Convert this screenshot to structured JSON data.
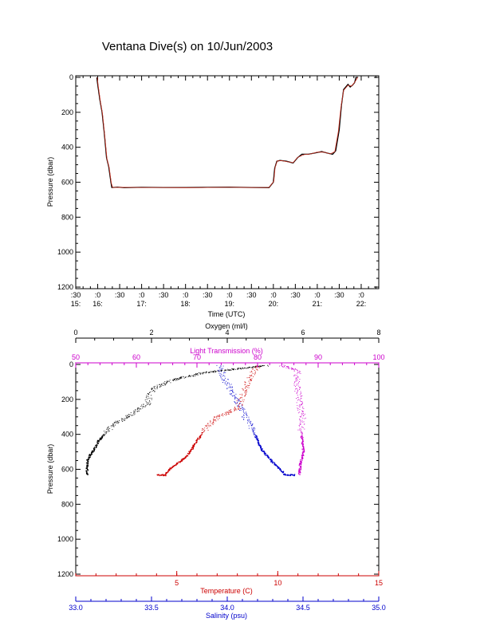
{
  "chart_data": [
    {
      "type": "line",
      "title": "Ventana Dive(s) on 10/Jun/2003",
      "xlabel": "Time (UTC)",
      "ylabel": "Pressure (dbar)",
      "x_tick_labels": [
        {
          "minute": ":30",
          "hour": "15:"
        },
        {
          "minute": ":0",
          "hour": "16:"
        },
        {
          "minute": ":30",
          "hour": ""
        },
        {
          "minute": ":0",
          "hour": "17:"
        },
        {
          "minute": ":30",
          "hour": ""
        },
        {
          "minute": ":0",
          "hour": "18:"
        },
        {
          "minute": ":30",
          "hour": ""
        },
        {
          "minute": ":0",
          "hour": "19:"
        },
        {
          "minute": ":30",
          "hour": ""
        },
        {
          "minute": ":0",
          "hour": "20:"
        },
        {
          "minute": ":30",
          "hour": ""
        },
        {
          "minute": ":0",
          "hour": "21:"
        },
        {
          "minute": ":30",
          "hour": ""
        },
        {
          "minute": ":0",
          "hour": "22:"
        }
      ],
      "xlim_hours": [
        15.5,
        22.4
      ],
      "ylim": [
        1200,
        0
      ],
      "y_ticks": [
        0,
        200,
        400,
        600,
        800,
        1000,
        1200
      ],
      "series": [
        {
          "color": "#000000",
          "x_hours": [
            15.98,
            16.0,
            16.05,
            16.1,
            16.15,
            16.2,
            16.25,
            16.3,
            16.32,
            16.35,
            16.45,
            16.6,
            17.0,
            17.5,
            18.0,
            18.5,
            19.0,
            19.5,
            19.9,
            20.0,
            20.03,
            20.08,
            20.15,
            20.3,
            20.45,
            20.55,
            20.65,
            20.8,
            21.0,
            21.1,
            21.25,
            21.35,
            21.42,
            21.5,
            21.55,
            21.6,
            21.7,
            21.75,
            21.8,
            21.85,
            21.88,
            21.93
          ],
          "y_dbar": [
            0,
            40,
            130,
            200,
            320,
            460,
            510,
            600,
            630,
            630,
            628,
            631,
            629,
            630,
            630,
            629,
            628,
            630,
            631,
            600,
            520,
            480,
            475,
            480,
            490,
            460,
            440,
            440,
            430,
            425,
            435,
            440,
            420,
            300,
            160,
            70,
            40,
            55,
            45,
            30,
            0,
            0
          ]
        },
        {
          "color": "#d03020",
          "x_hours": [
            15.99,
            16.01,
            16.06,
            16.11,
            16.16,
            16.21,
            16.26,
            16.31,
            16.34,
            16.5,
            17.0,
            17.5,
            18.0,
            18.5,
            19.0,
            19.5,
            19.9,
            20.01,
            20.04,
            20.09,
            20.2,
            20.3,
            20.45,
            20.55,
            20.7,
            20.85,
            21.0,
            21.15,
            21.3,
            21.4,
            21.48,
            21.54,
            21.6,
            21.7,
            21.78,
            21.86,
            21.92
          ],
          "y_dbar": [
            0,
            45,
            135,
            210,
            330,
            465,
            515,
            605,
            630,
            629,
            630,
            630,
            631,
            630,
            629,
            630,
            630,
            595,
            515,
            478,
            477,
            482,
            488,
            458,
            442,
            438,
            428,
            428,
            438,
            425,
            310,
            170,
            75,
            45,
            50,
            25,
            0
          ]
        }
      ]
    },
    {
      "type": "scatter",
      "ylabel": "Pressure (dbar)",
      "ylim": [
        1200,
        0
      ],
      "y_ticks": [
        0,
        200,
        400,
        600,
        800,
        1000,
        1200
      ],
      "axes": {
        "oxygen": {
          "label": "Oxygen (ml/l)",
          "range": [
            0,
            8
          ],
          "ticks": [
            0,
            2,
            4,
            6,
            8
          ],
          "color": "#000000",
          "position": "top"
        },
        "light_transmission": {
          "label": "Light Transmission (%)",
          "range": [
            50,
            100
          ],
          "ticks": [
            50,
            60,
            70,
            80,
            90,
            100
          ],
          "color": "#cc00cc",
          "position": "top"
        },
        "temperature": {
          "label": "Temperature (C)",
          "range": [
            0,
            15
          ],
          "ticks": [
            5,
            10,
            15
          ],
          "color": "#cc0000",
          "position": "bottom"
        },
        "salinity": {
          "label": "Salinity (psu)",
          "range": [
            33.0,
            35.0
          ],
          "ticks": [
            "33.0",
            "33.5",
            "34.0",
            "34.5",
            "35.0"
          ],
          "color": "#0000cc",
          "position": "bottom"
        }
      },
      "series": [
        {
          "name": "Oxygen",
          "axis": "oxygen",
          "color": "#000000",
          "profile": [
            [
              5.0,
              5
            ],
            [
              4.2,
              25
            ],
            [
              3.4,
              45
            ],
            [
              2.5,
              90
            ],
            [
              2.0,
              140
            ],
            [
              1.9,
              220
            ],
            [
              1.5,
              280
            ],
            [
              1.0,
              340
            ],
            [
              0.6,
              430
            ],
            [
              0.45,
              490
            ],
            [
              0.3,
              540
            ],
            [
              0.28,
              600
            ],
            [
              0.3,
              630
            ]
          ]
        },
        {
          "name": "Light Transmission",
          "axis": "light_transmission",
          "color": "#cc00cc",
          "profile": [
            [
              84,
              5
            ],
            [
              86.5,
              30
            ],
            [
              86.5,
              100
            ],
            [
              86.8,
              200
            ],
            [
              87.3,
              300
            ],
            [
              87.2,
              400
            ],
            [
              87.5,
              500
            ],
            [
              87.0,
              560
            ],
            [
              86.8,
              630
            ]
          ]
        },
        {
          "name": "Temperature",
          "axis": "temperature",
          "color": "#cc0000",
          "profile": [
            [
              9.0,
              5
            ],
            [
              8.7,
              60
            ],
            [
              8.3,
              150
            ],
            [
              8.0,
              250
            ],
            [
              7.0,
              300
            ],
            [
              6.5,
              350
            ],
            [
              6.0,
              430
            ],
            [
              5.5,
              520
            ],
            [
              4.6,
              600
            ],
            [
              4.4,
              630
            ],
            [
              4.0,
              630
            ]
          ]
        },
        {
          "name": "Salinity",
          "axis": "salinity",
          "color": "#0000cc",
          "profile": [
            [
              33.95,
              5
            ],
            [
              33.98,
              80
            ],
            [
              34.06,
              200
            ],
            [
              34.12,
              300
            ],
            [
              34.18,
              400
            ],
            [
              34.22,
              480
            ],
            [
              34.3,
              560
            ],
            [
              34.35,
              600
            ],
            [
              34.38,
              630
            ],
            [
              34.45,
              630
            ]
          ]
        }
      ]
    }
  ]
}
